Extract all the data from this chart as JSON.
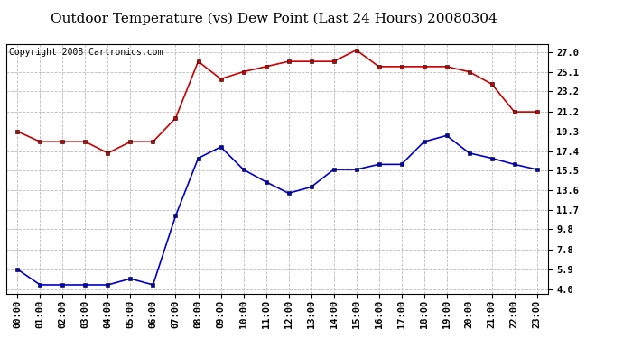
{
  "title": "Outdoor Temperature (vs) Dew Point (Last 24 Hours) 20080304",
  "copyright_text": "Copyright 2008 Cartronics.com",
  "x_labels": [
    "00:00",
    "01:00",
    "02:00",
    "03:00",
    "04:00",
    "05:00",
    "06:00",
    "07:00",
    "08:00",
    "09:00",
    "10:00",
    "11:00",
    "12:00",
    "13:00",
    "14:00",
    "15:00",
    "16:00",
    "17:00",
    "18:00",
    "19:00",
    "20:00",
    "21:00",
    "22:00",
    "23:00"
  ],
  "temp_data": [
    19.3,
    18.3,
    18.3,
    18.3,
    17.2,
    18.3,
    18.3,
    20.6,
    26.1,
    24.4,
    25.1,
    25.6,
    26.1,
    26.1,
    26.1,
    27.2,
    25.6,
    25.6,
    25.6,
    25.6,
    25.1,
    23.9,
    21.2,
    21.2
  ],
  "dew_data": [
    5.9,
    4.4,
    4.4,
    4.4,
    4.4,
    5.0,
    4.4,
    11.1,
    16.7,
    17.8,
    15.6,
    14.4,
    13.3,
    13.9,
    15.6,
    15.6,
    16.1,
    16.1,
    18.3,
    18.9,
    17.2,
    16.7,
    16.1,
    15.6
  ],
  "temp_color": "#cc0000",
  "dew_color": "#0000cc",
  "bg_color": "#ffffff",
  "grid_color": "#bbbbbb",
  "yticks": [
    4.0,
    5.9,
    7.8,
    9.8,
    11.7,
    13.6,
    15.5,
    17.4,
    19.3,
    21.2,
    23.2,
    25.1,
    27.0
  ],
  "ylim": [
    3.5,
    27.8
  ],
  "title_fontsize": 11,
  "axis_fontsize": 7.5,
  "copyright_fontsize": 7
}
